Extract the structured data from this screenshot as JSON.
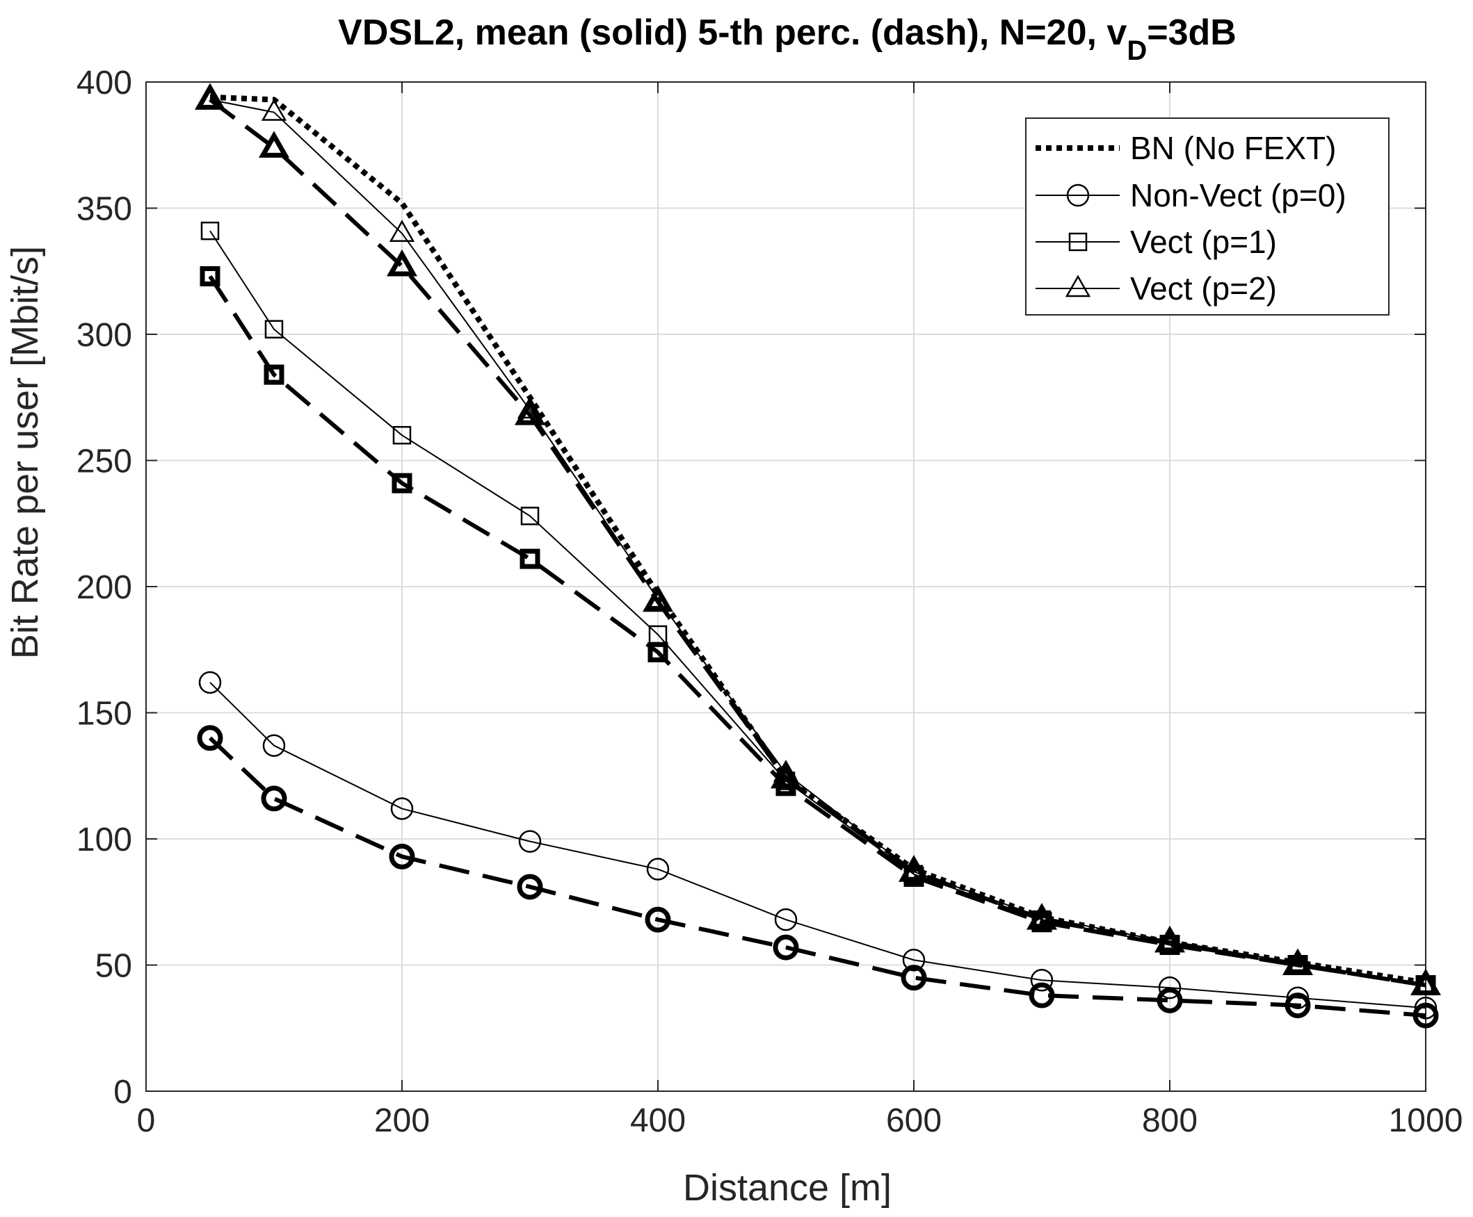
{
  "chart_data": {
    "type": "line",
    "title_main": "VDSL2, mean (solid) 5-th perc. (dash), N=20, v",
    "title_sub": "D",
    "title_end": "=3dB",
    "xlabel": "Distance [m]",
    "ylabel": "Bit Rate per user [Mbit/s]",
    "xlim": [
      0,
      1000
    ],
    "ylim": [
      0,
      400
    ],
    "xticks": [
      0,
      200,
      400,
      600,
      800,
      1000
    ],
    "yticks": [
      0,
      50,
      100,
      150,
      200,
      250,
      300,
      350,
      400
    ],
    "grid": true,
    "legend_position": "top-right",
    "x": [
      50,
      100,
      200,
      300,
      400,
      500,
      600,
      700,
      800,
      900,
      1000
    ],
    "series": [
      {
        "name": "BN (No FEXT)",
        "style": "dotted",
        "marker": "none",
        "values": [
          394,
          393,
          352,
          275,
          197,
          124,
          88,
          69,
          59,
          51,
          43
        ]
      },
      {
        "name": "Non-Vect (p=0)",
        "style": "solid",
        "marker": "circle",
        "values": [
          162,
          137,
          112,
          99,
          88,
          68,
          52,
          44,
          41,
          37,
          33
        ]
      },
      {
        "name": "Vect (p=1)",
        "style": "solid",
        "marker": "square",
        "values": [
          341,
          302,
          260,
          228,
          181,
          123,
          86,
          68,
          58,
          50,
          42
        ]
      },
      {
        "name": "Vect (p=2)",
        "style": "solid",
        "marker": "triangle",
        "values": [
          393,
          388,
          340,
          270,
          195,
          126,
          87,
          69,
          59,
          51,
          42
        ]
      },
      {
        "name": "Non-Vect (p=0) 5-th perc.",
        "style": "dashed",
        "marker": "circle",
        "values": [
          140,
          116,
          93,
          81,
          68,
          57,
          45,
          38,
          36,
          34,
          30
        ]
      },
      {
        "name": "Vect (p=1) 5-th perc.",
        "style": "dashed",
        "marker": "square",
        "values": [
          323,
          284,
          241,
          211,
          174,
          121,
          85,
          67,
          58,
          50,
          42
        ]
      },
      {
        "name": "Vect (p=2) 5-th perc.",
        "style": "dashed",
        "marker": "triangle",
        "values": [
          393,
          374,
          327,
          268,
          194,
          124,
          87,
          68,
          59,
          50,
          42
        ]
      }
    ],
    "legend": [
      "BN (No FEXT)",
      "Non-Vect (p=0)",
      "Vect (p=1)",
      "Vect (p=2)"
    ]
  }
}
